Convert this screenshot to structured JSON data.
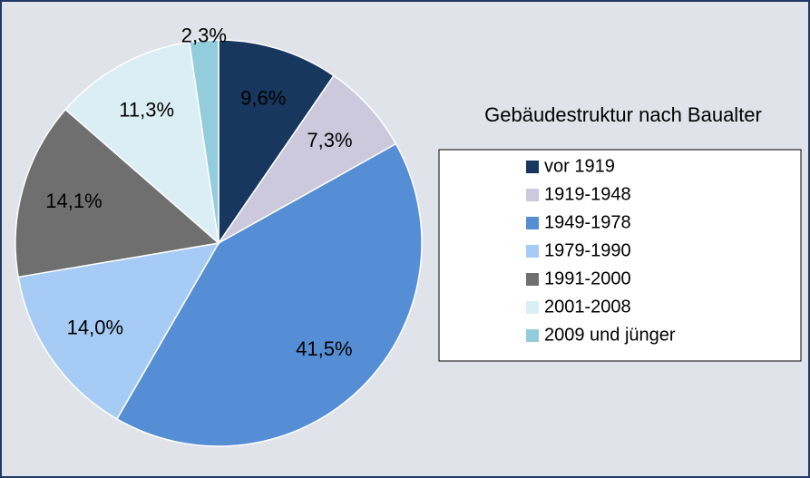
{
  "chart_data": {
    "type": "pie",
    "title": "Gebäudestruktur nach Baualter",
    "categories": [
      "vor 1919",
      "1919-1948",
      "1949-1978",
      "1979-1990",
      "1991-2000",
      "2001-2008",
      "2009 und jünger"
    ],
    "values": [
      9.6,
      7.3,
      41.5,
      14.0,
      14.1,
      11.3,
      2.3
    ],
    "value_labels": [
      "9,6%",
      "7,3%",
      "41,5%",
      "14,0%",
      "14,1%",
      "11,3%",
      "2,3%"
    ],
    "colors": [
      "#17375e",
      "#ccc9dd",
      "#558ed5",
      "#a6cbf5",
      "#6f6f6f",
      "#dbeef4",
      "#93cddd"
    ],
    "legend": "right"
  }
}
